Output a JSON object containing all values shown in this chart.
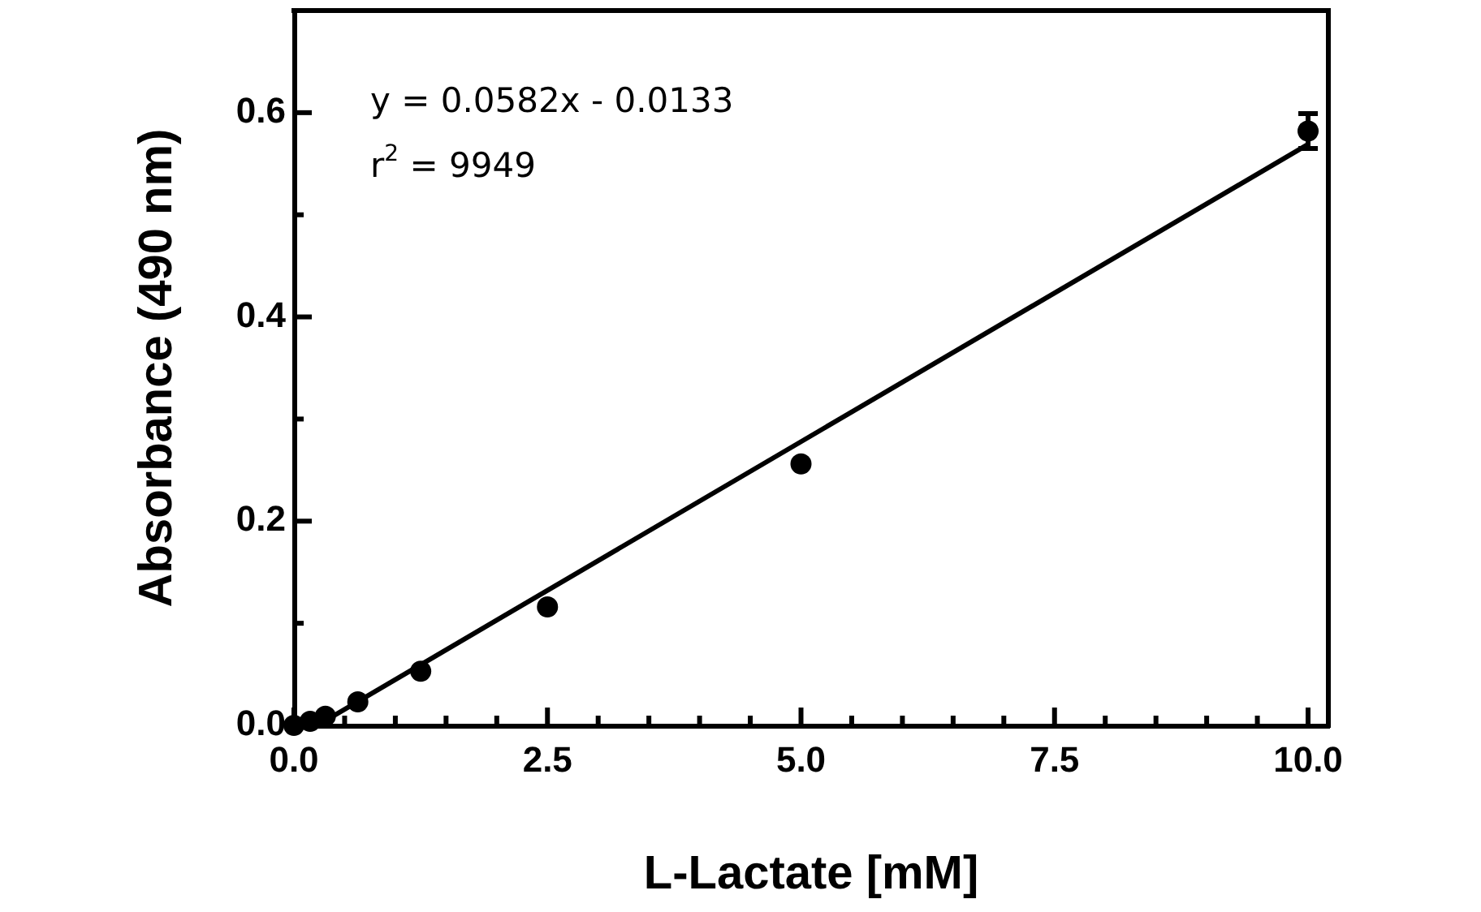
{
  "chart_data": {
    "type": "scatter",
    "xlabel": "L-Lactate [mM]",
    "ylabel": "Absorbance (490 nm)",
    "annotations": [
      "y = 0.0582x - 0.0133",
      "r$^{2}$ = 9949"
    ],
    "series": [
      {
        "color": "#000000",
        "marker": "circle",
        "x": [
          0,
          0.16,
          0.31,
          0.63,
          1.25,
          2.5,
          5,
          10
        ],
        "values": [
          0,
          0.004,
          0.009,
          0.023,
          0.053,
          0.116,
          0.256,
          0.582
        ],
        "errors": [
          null,
          null,
          null,
          null,
          null,
          null,
          null,
          0.017
        ]
      },
      {
        "type": "line",
        "color": "#000000",
        "x": [
          0.23,
          10
        ],
        "values": [
          0,
          0.569
        ]
      }
    ],
    "xlim": [
      0,
      10.2
    ],
    "ylim": [
      0,
      0.7
    ],
    "xticks": [
      {
        "value": 0,
        "label": "0.0"
      },
      {
        "value": 0.5,
        "label": null
      },
      {
        "value": 1,
        "label": null
      },
      {
        "value": 1.5,
        "label": null
      },
      {
        "value": 2,
        "label": null
      },
      2.5,
      {
        "value": 3,
        "label": null
      },
      {
        "value": 3.5,
        "label": null
      },
      {
        "value": 4,
        "label": null
      },
      {
        "value": 4.5,
        "label": null
      },
      {
        "value": 5,
        "label": "5.0"
      },
      {
        "value": 5.5,
        "label": null
      },
      {
        "value": 6,
        "label": null
      },
      {
        "value": 6.5,
        "label": null
      },
      {
        "value": 7,
        "label": null
      },
      7.5,
      {
        "value": 8,
        "label": null
      },
      {
        "value": 8.5,
        "label": null
      },
      {
        "value": 9,
        "label": null
      },
      {
        "value": 9.5,
        "label": null
      },
      {
        "value": 10,
        "label": "10.0"
      }
    ],
    "yticks": [
      {
        "value": 0,
        "label": "0.0"
      },
      {
        "value": 0.1,
        "label": null
      },
      0.2,
      {
        "value": 0.3,
        "label": null
      },
      0.4,
      {
        "value": 0.5,
        "label": null
      },
      0.6
    ]
  }
}
